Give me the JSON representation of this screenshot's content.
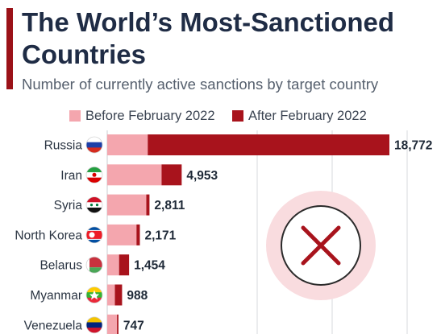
{
  "title": "The World’s Most-Sanctioned Countries",
  "subtitle": "Number of currently active sanctions by target country",
  "colors": {
    "accent": "#9b1218",
    "before": "#f4a6ae",
    "after": "#a8131c",
    "grid": "#d7d9dd"
  },
  "legend": {
    "before_label": "Before February 2022",
    "after_label": "After February 2022"
  },
  "chart_data": {
    "type": "bar",
    "orientation": "horizontal",
    "stacked": true,
    "categories": [
      "Russia",
      "Iran",
      "Syria",
      "North Korea",
      "Belarus",
      "Myanmar",
      "Venezuela"
    ],
    "flags": [
      "russia-flag-icon",
      "iran-flag-icon",
      "syria-flag-icon",
      "north-korea-flag-icon",
      "belarus-flag-icon",
      "myanmar-flag-icon",
      "venezuela-flag-icon"
    ],
    "series": [
      {
        "name": "Before February 2022",
        "values": [
          2695,
          3616,
          2600,
          1947,
          788,
          510,
          651
        ]
      },
      {
        "name": "After February 2022",
        "values": [
          16077,
          1337,
          211,
          224,
          666,
          478,
          96
        ]
      }
    ],
    "totals": [
      "18,772",
      "4,953",
      "2,811",
      "2,171",
      "1,454",
      "988",
      "747"
    ],
    "grid": true,
    "xlim": [
      0,
      20000
    ],
    "legend_position": "top"
  },
  "watermark": {
    "name": "red-x-cross-icon"
  }
}
